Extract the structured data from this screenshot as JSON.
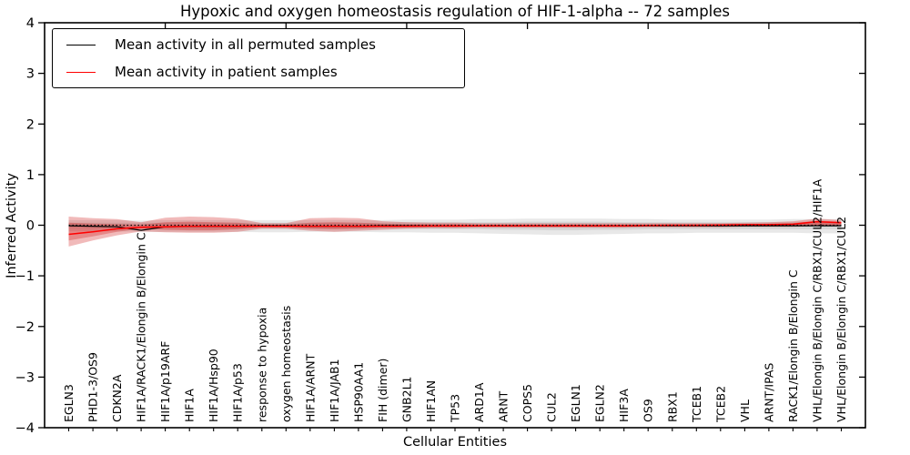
{
  "chart_data": {
    "type": "line",
    "title": "Hypoxic and oxygen homeostasis regulation of HIF-1-alpha -- 72 samples",
    "xlabel": "Cellular Entities",
    "ylabel": "Inferred Activity",
    "ylim": [
      -4,
      4
    ],
    "yticks": [
      -4,
      -3,
      -2,
      -1,
      0,
      1,
      2,
      3,
      4
    ],
    "ytick_labels": [
      "−4",
      "−3",
      "−2",
      "−1",
      "0",
      "1",
      "2",
      "3",
      "4"
    ],
    "grid": false,
    "legend_position": "upper left",
    "categories": [
      "EGLN3",
      "PHD1-3/OS9",
      "CDKN2A",
      "HIF1A/RACK1/Elongin B/Elongin C",
      "HIF1A/p19ARF",
      "HIF1A",
      "HIF1A/Hsp90",
      "HIF1A/p53",
      "response to hypoxia",
      "oxygen homeostasis",
      "HIF1A/ARNT",
      "HIF1A/JAB1",
      "HSP90AA1",
      "FIH (dimer)",
      "GNB2L1",
      "HIF1AN",
      "TP53",
      "ARD1A",
      "ARNT",
      "COPS5",
      "CUL2",
      "EGLN1",
      "EGLN2",
      "HIF3A",
      "OS9",
      "RBX1",
      "TCEB1",
      "TCEB2",
      "VHL",
      "ARNT/IPAS",
      "RACK1/Elongin B/Elongin C",
      "VHL/Elongin B/Elongin C/RBX1/CUL2/HIF1A",
      "VHL/Elongin B/Elongin C/RBX1/CUL2"
    ],
    "series": [
      {
        "name": "Mean activity in all permuted samples",
        "color": "#000000",
        "values": [
          -0.01,
          -0.02,
          -0.03,
          -0.1,
          -0.03,
          -0.02,
          -0.02,
          -0.02,
          -0.01,
          -0.01,
          -0.02,
          -0.02,
          -0.02,
          -0.01,
          -0.01,
          -0.01,
          -0.01,
          -0.01,
          -0.01,
          -0.01,
          -0.01,
          -0.01,
          -0.01,
          -0.01,
          -0.01,
          -0.01,
          -0.01,
          -0.01,
          -0.01,
          -0.01,
          -0.01,
          -0.01,
          -0.01
        ]
      },
      {
        "name": "Mean activity in patient samples",
        "color": "#ff0000",
        "values": [
          -0.18,
          -0.13,
          -0.07,
          -0.04,
          -0.03,
          -0.02,
          -0.02,
          -0.02,
          -0.02,
          -0.02,
          -0.02,
          -0.02,
          -0.02,
          -0.02,
          -0.02,
          -0.015,
          -0.015,
          -0.01,
          -0.01,
          -0.01,
          -0.01,
          -0.01,
          -0.01,
          -0.01,
          -0.005,
          0.0,
          0.0,
          0.005,
          0.01,
          0.01,
          0.02,
          0.07,
          0.05
        ]
      }
    ],
    "bands": [
      {
        "name": "permuted-range-outer",
        "color": "#808080",
        "opacity": 0.18,
        "top": [
          0.1,
          0.1,
          0.1,
          0.09,
          0.1,
          0.1,
          0.1,
          0.1,
          0.1,
          0.1,
          0.1,
          0.1,
          0.1,
          0.1,
          0.11,
          0.11,
          0.11,
          0.12,
          0.12,
          0.13,
          0.13,
          0.13,
          0.13,
          0.12,
          0.12,
          0.11,
          0.11,
          0.11,
          0.11,
          0.11,
          0.12,
          0.12,
          0.12
        ],
        "bottom": [
          -0.12,
          -0.12,
          -0.12,
          -0.13,
          -0.13,
          -0.13,
          -0.13,
          -0.13,
          -0.14,
          -0.14,
          -0.13,
          -0.13,
          -0.13,
          -0.14,
          -0.14,
          -0.15,
          -0.15,
          -0.16,
          -0.17,
          -0.18,
          -0.19,
          -0.19,
          -0.18,
          -0.17,
          -0.16,
          -0.16,
          -0.15,
          -0.15,
          -0.15,
          -0.15,
          -0.15,
          -0.16,
          -0.16
        ]
      },
      {
        "name": "permuted-range-inner",
        "color": "#808080",
        "opacity": 0.18,
        "top": [
          0.05,
          0.05,
          0.05,
          0.05,
          0.05,
          0.05,
          0.05,
          0.05,
          0.05,
          0.05,
          0.05,
          0.05,
          0.05,
          0.05,
          0.06,
          0.06,
          0.06,
          0.06,
          0.06,
          0.07,
          0.07,
          0.07,
          0.07,
          0.06,
          0.06,
          0.06,
          0.06,
          0.06,
          0.06,
          0.06,
          0.06,
          0.06,
          0.06
        ],
        "bottom": [
          -0.06,
          -0.06,
          -0.06,
          -0.07,
          -0.07,
          -0.07,
          -0.07,
          -0.07,
          -0.07,
          -0.07,
          -0.07,
          -0.07,
          -0.07,
          -0.07,
          -0.07,
          -0.08,
          -0.08,
          -0.08,
          -0.09,
          -0.09,
          -0.1,
          -0.1,
          -0.09,
          -0.09,
          -0.08,
          -0.08,
          -0.08,
          -0.08,
          -0.08,
          -0.08,
          -0.08,
          -0.08,
          -0.08
        ]
      },
      {
        "name": "patient-range-outer",
        "color": "#cc0000",
        "opacity": 0.27,
        "top": [
          0.17,
          0.14,
          0.12,
          0.06,
          0.15,
          0.17,
          0.16,
          0.13,
          0.04,
          0.04,
          0.14,
          0.15,
          0.14,
          0.08,
          0.06,
          0.05,
          0.05,
          0.04,
          0.04,
          0.04,
          0.04,
          0.04,
          0.04,
          0.04,
          0.04,
          0.04,
          0.04,
          0.04,
          0.05,
          0.06,
          0.08,
          0.13,
          0.1
        ],
        "bottom": [
          -0.42,
          -0.3,
          -0.2,
          -0.12,
          -0.14,
          -0.15,
          -0.15,
          -0.13,
          -0.07,
          -0.07,
          -0.11,
          -0.13,
          -0.11,
          -0.09,
          -0.07,
          -0.06,
          -0.06,
          -0.05,
          -0.05,
          -0.05,
          -0.05,
          -0.05,
          -0.05,
          -0.05,
          -0.04,
          -0.04,
          -0.04,
          -0.04,
          -0.03,
          -0.03,
          -0.03,
          -0.02,
          -0.02
        ]
      },
      {
        "name": "patient-range-inner",
        "color": "#cc0000",
        "opacity": 0.27,
        "top": [
          0.05,
          0.03,
          0.02,
          0.01,
          0.06,
          0.07,
          0.06,
          0.05,
          0.01,
          0.01,
          0.05,
          0.06,
          0.05,
          0.03,
          0.02,
          0.02,
          0.02,
          0.01,
          0.01,
          0.01,
          0.01,
          0.01,
          0.01,
          0.01,
          0.01,
          0.01,
          0.01,
          0.02,
          0.02,
          0.03,
          0.04,
          0.09,
          0.07
        ],
        "bottom": [
          -0.3,
          -0.22,
          -0.13,
          -0.07,
          -0.09,
          -0.1,
          -0.1,
          -0.08,
          -0.04,
          -0.04,
          -0.07,
          -0.08,
          -0.07,
          -0.05,
          -0.04,
          -0.04,
          -0.04,
          -0.03,
          -0.03,
          -0.03,
          -0.03,
          -0.03,
          -0.03,
          -0.03,
          -0.02,
          -0.02,
          -0.02,
          -0.02,
          -0.01,
          -0.01,
          -0.01,
          0.0,
          0.0
        ]
      }
    ],
    "zero_line": {
      "value": 0,
      "style": "dotted",
      "color": "#000000"
    }
  }
}
